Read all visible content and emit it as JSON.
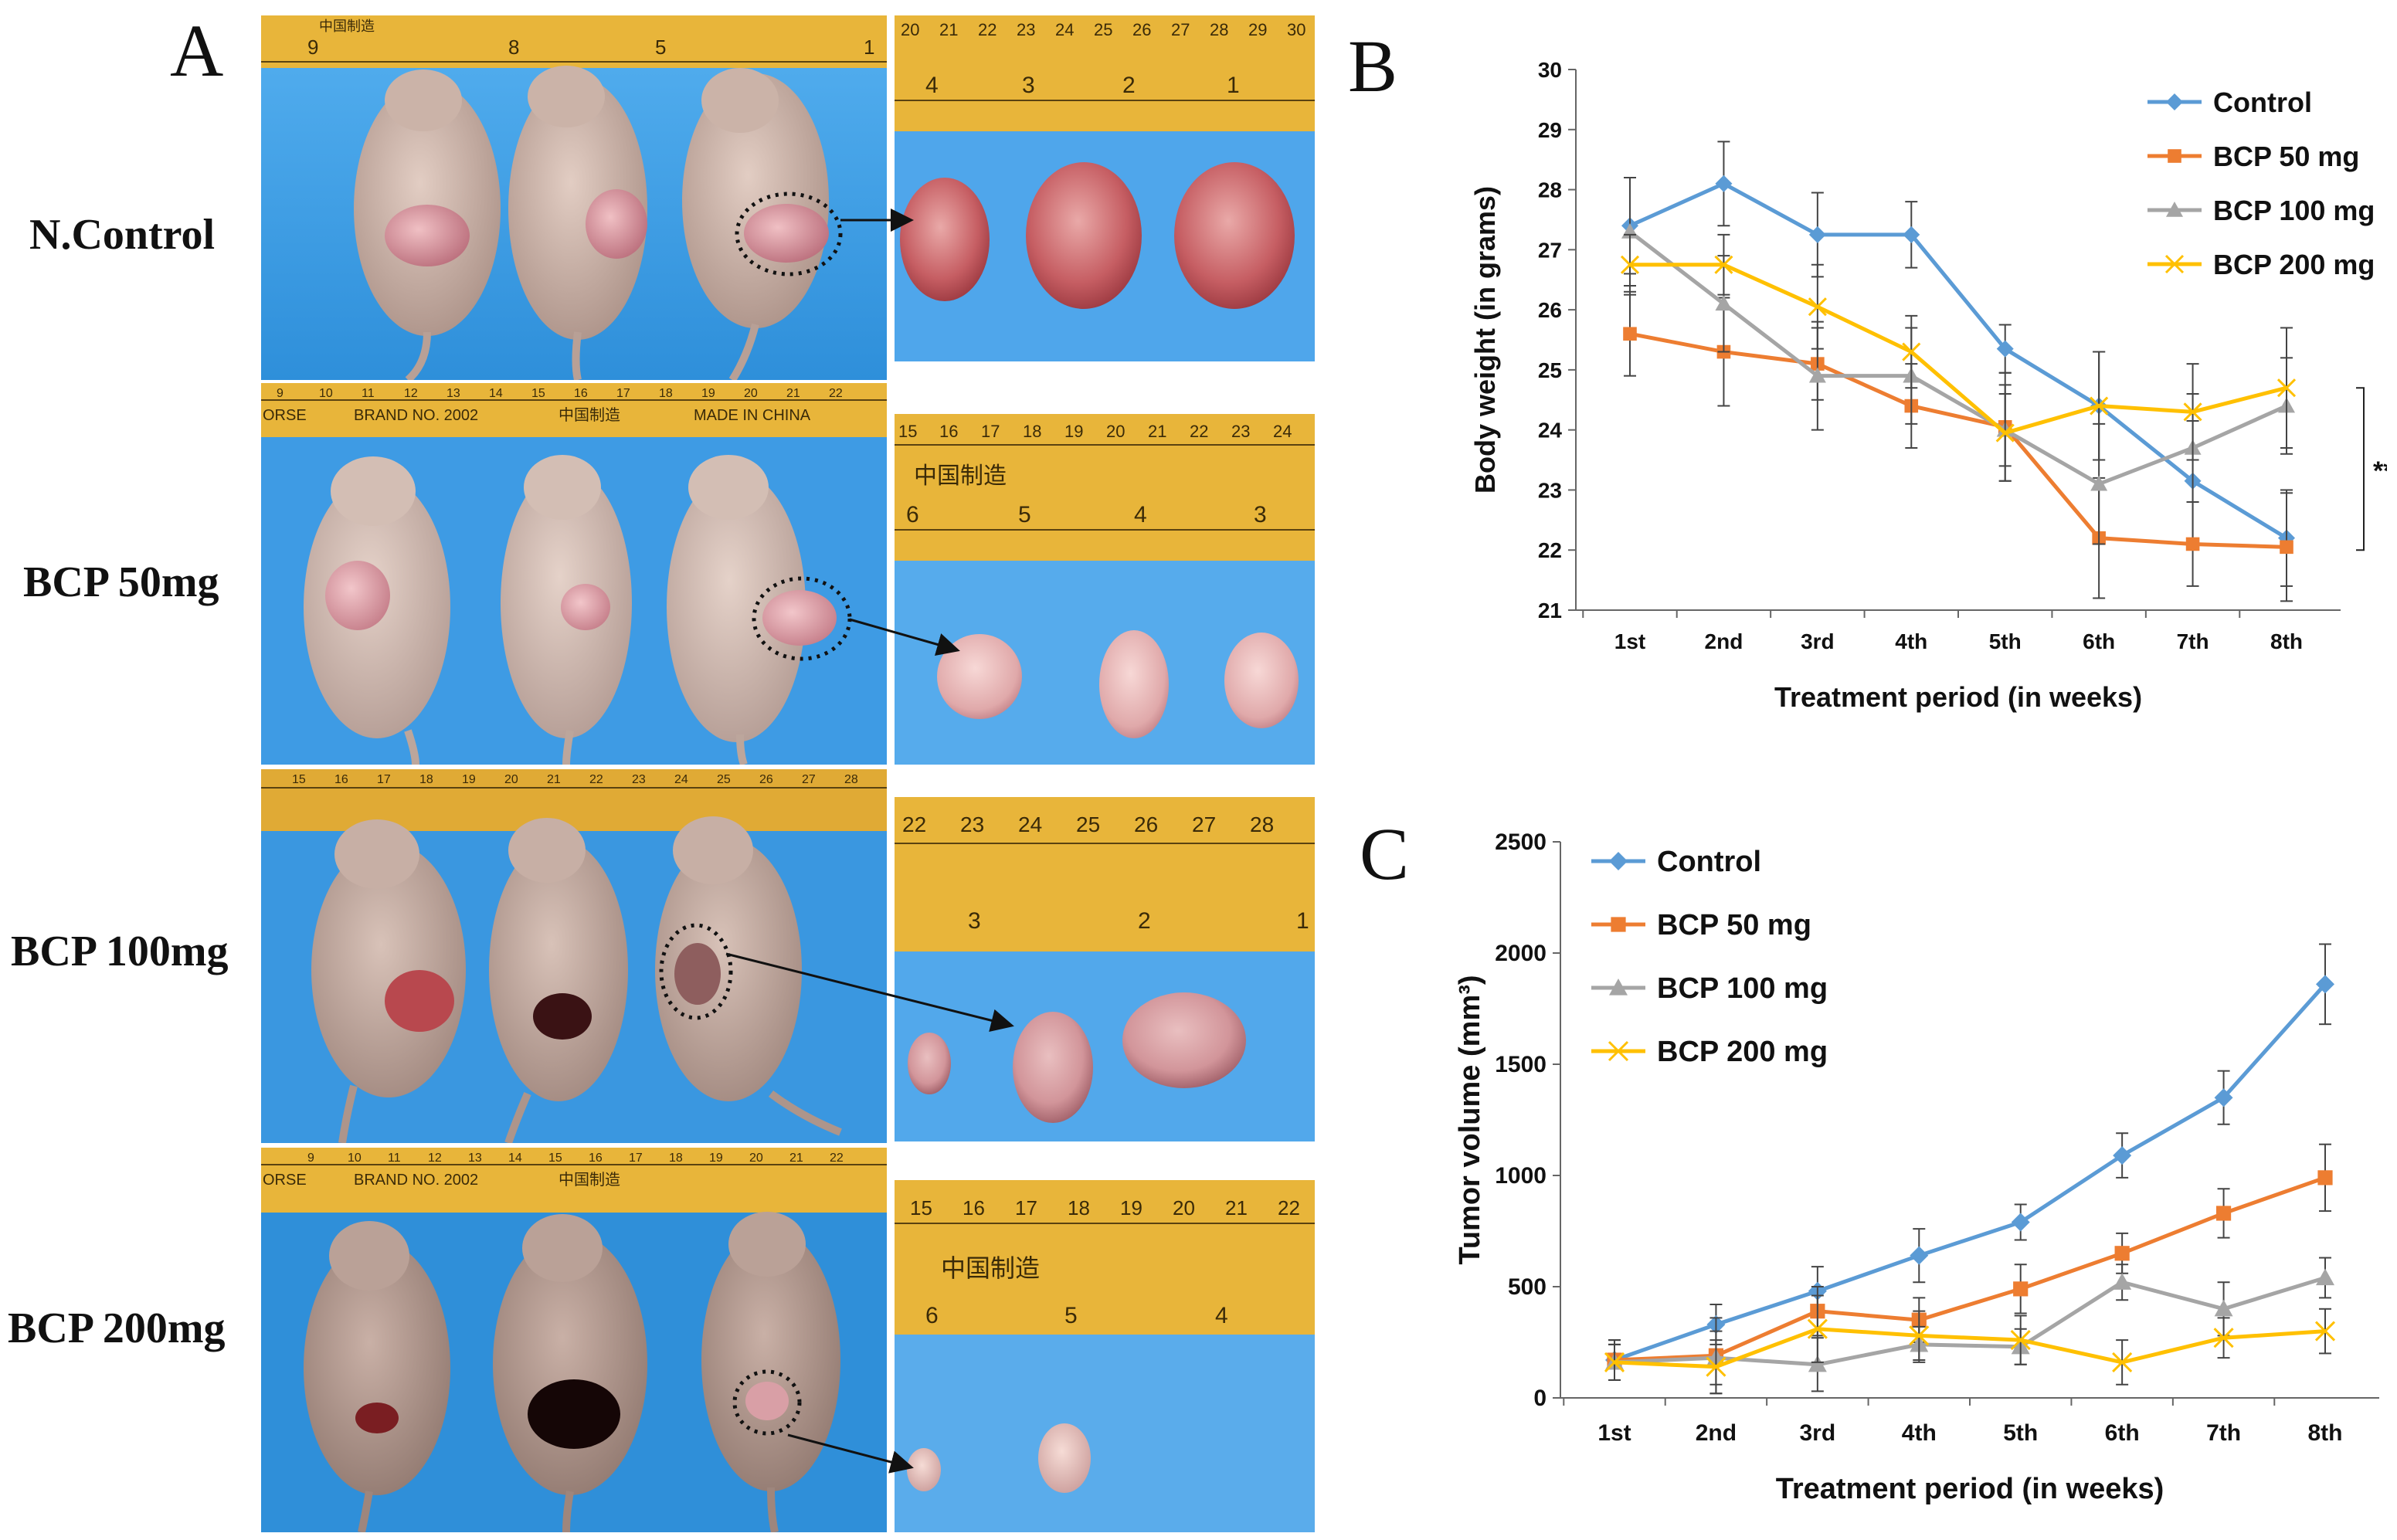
{
  "figure": {
    "panel_letters": [
      "A",
      "B",
      "C"
    ],
    "row_labels": [
      "N.Control",
      "BCP 50mg",
      "BCP 100mg",
      "BCP 200mg"
    ],
    "ruler_texts": {
      "brand_line": "ORSE",
      "brand_no": "BRAND NO. 2002",
      "made_in": "MADE IN CHINA",
      "cn_label": "中国制造",
      "row1_mice_ticks": [
        "9",
        "8",
        "5",
        "1"
      ],
      "row1_tumor_ticks": [
        "20",
        "21",
        "22",
        "23",
        "24",
        "25",
        "26",
        "27",
        "28",
        "29",
        "30"
      ],
      "row1_tumor_cm": [
        "4",
        "3",
        "2",
        "1"
      ],
      "row2_mice_ticks": [
        "9",
        "10",
        "11",
        "12",
        "13",
        "14",
        "15",
        "16",
        "17",
        "18",
        "19",
        "20",
        "21",
        "22"
      ],
      "row2_tumor_ticks": [
        "15",
        "16",
        "17",
        "18",
        "19",
        "20",
        "21",
        "22",
        "23",
        "24"
      ],
      "row2_tumor_cm": [
        "6",
        "5",
        "4",
        "3"
      ],
      "row3_mice_ticks": [
        "15",
        "16",
        "17",
        "18",
        "19",
        "20",
        "21",
        "22",
        "23",
        "24",
        "25",
        "26",
        "27",
        "28"
      ],
      "row3_tumor_ticks": [
        "22",
        "23",
        "24",
        "25",
        "26",
        "27",
        "28"
      ],
      "row3_tumor_cm": [
        "3",
        "2",
        "1"
      ],
      "row4_mice_ticks": [
        "9",
        "10",
        "11",
        "12",
        "13",
        "14",
        "15",
        "16",
        "17",
        "18",
        "19",
        "20",
        "21",
        "22"
      ],
      "row4_tumor_ticks": [
        "15",
        "16",
        "17",
        "18",
        "19",
        "20",
        "21",
        "22"
      ],
      "row4_tumor_cm": [
        "6",
        "5",
        "4"
      ]
    },
    "colors": {
      "control": "#5B9BD5",
      "bcp50": "#ED7D31",
      "bcp100": "#A5A5A5",
      "bcp200": "#FFC000",
      "background_blue": "#3FA0E8",
      "ruler": "#E8B53A",
      "mouse_skin": "#CDB5AA"
    }
  },
  "chart_data": [
    {
      "type": "line",
      "panel": "B",
      "title": "",
      "xlabel": "Treatment period (in weeks)",
      "ylabel": "Body weight (in grams)",
      "categories": [
        "1st",
        "2nd",
        "3rd",
        "4th",
        "5th",
        "6th",
        "7th",
        "8th"
      ],
      "ylim": [
        21,
        30
      ],
      "yticks": [
        "21",
        "22",
        "23",
        "24",
        "25",
        "26",
        "27",
        "28",
        "29",
        "30"
      ],
      "legend_position": "top-right",
      "significance_label": "**",
      "series": [
        {
          "name": "Control",
          "marker": "diamond",
          "color": "#5B9BD5",
          "values": [
            27.4,
            28.1,
            27.25,
            27.25,
            25.35,
            24.4,
            23.15,
            22.2
          ],
          "errors": [
            0.8,
            0.7,
            0.7,
            0.55,
            0.4,
            0.9,
            1.0,
            0.8
          ]
        },
        {
          "name": "BCP 50 mg",
          "marker": "square",
          "color": "#ED7D31",
          "values": [
            25.6,
            25.3,
            25.1,
            24.4,
            24.05,
            22.2,
            22.1,
            22.05
          ],
          "errors": [
            0.7,
            0.9,
            0.6,
            0.7,
            0.9,
            1.0,
            0.7,
            0.9
          ]
        },
        {
          "name": "BCP 100 mg",
          "marker": "triangle",
          "color": "#A5A5A5",
          "values": [
            27.3,
            26.1,
            24.9,
            24.9,
            24.0,
            23.1,
            23.7,
            24.4
          ],
          "errors": [
            0.9,
            0.8,
            0.9,
            0.8,
            0.6,
            1.0,
            0.9,
            0.8
          ]
        },
        {
          "name": "BCP 200 mg",
          "marker": "x",
          "color": "#FFC000",
          "values": [
            26.75,
            26.75,
            26.05,
            25.3,
            23.95,
            24.4,
            24.3,
            24.7
          ],
          "errors": [
            0.5,
            0.5,
            0.7,
            0.6,
            0.8,
            0.9,
            0.8,
            1.0
          ]
        }
      ]
    },
    {
      "type": "line",
      "panel": "C",
      "title": "",
      "xlabel": "Treatment period (in weeks)",
      "ylabel": "Tumor volume (mm³)",
      "categories": [
        "1st",
        "2nd",
        "3rd",
        "4th",
        "5th",
        "6th",
        "7th",
        "8th"
      ],
      "ylim": [
        0,
        2500
      ],
      "yticks": [
        "0",
        "500",
        "1000",
        "1500",
        "2000",
        "2500"
      ],
      "legend_position": "top-left",
      "series": [
        {
          "name": "Control",
          "marker": "diamond",
          "color": "#5B9BD5",
          "values": [
            170,
            330,
            480,
            640,
            790,
            1090,
            1350,
            1860
          ],
          "errors": [
            90,
            90,
            110,
            120,
            80,
            100,
            120,
            180
          ]
        },
        {
          "name": "BCP 50 mg",
          "marker": "square",
          "color": "#ED7D31",
          "values": [
            170,
            190,
            390,
            350,
            490,
            650,
            830,
            990
          ],
          "errors": [
            90,
            170,
            110,
            100,
            110,
            90,
            110,
            150
          ]
        },
        {
          "name": "BCP 100 mg",
          "marker": "triangle",
          "color": "#A5A5A5",
          "values": [
            160,
            180,
            150,
            240,
            230,
            520,
            400,
            540
          ],
          "errors": [
            80,
            120,
            120,
            80,
            80,
            80,
            120,
            90
          ]
        },
        {
          "name": "BCP 200 mg",
          "marker": "x",
          "color": "#FFC000",
          "values": [
            160,
            140,
            310,
            280,
            260,
            160,
            270,
            300
          ],
          "errors": [
            80,
            120,
            150,
            110,
            110,
            100,
            90,
            100
          ]
        }
      ]
    }
  ]
}
